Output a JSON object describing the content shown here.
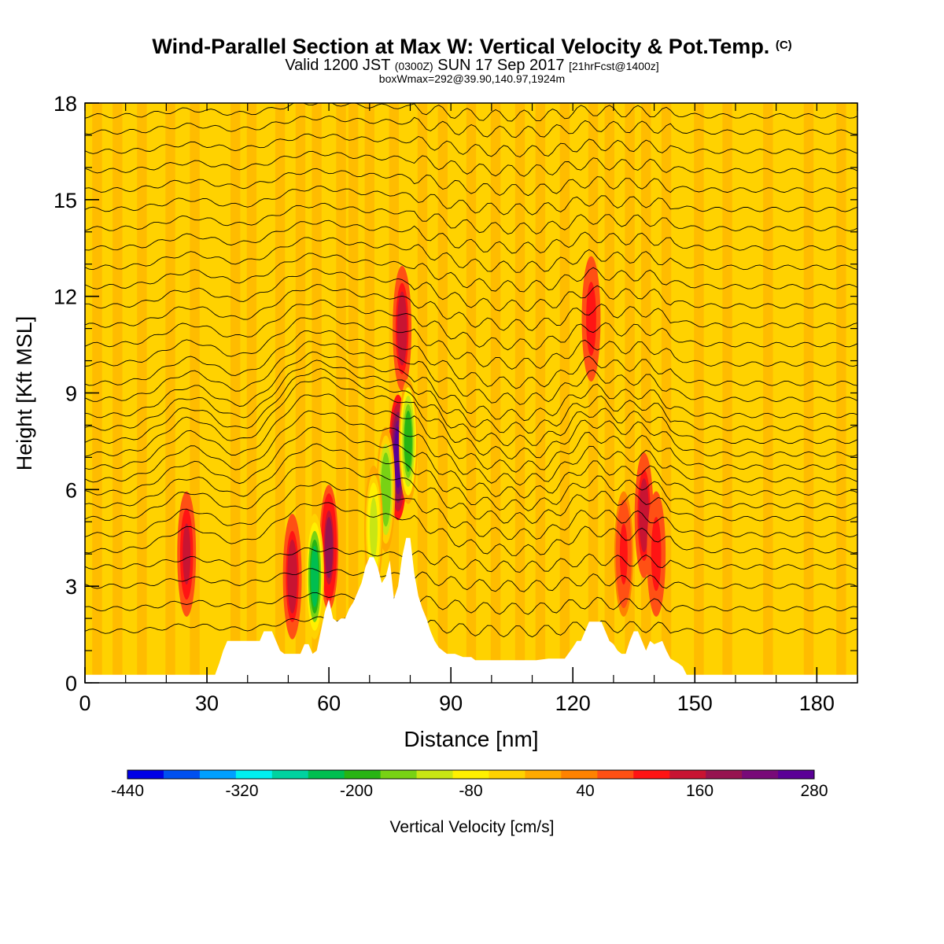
{
  "chart_data": {
    "type": "heatmap",
    "title": "Wind-Parallel Section at Max W: Vertical Velocity & Pot.Temp.",
    "title_mark": "(C)",
    "subtitle_parts": [
      "Valid 1200 JST ",
      "(0300Z)",
      " SUN 17 Sep 2017 ",
      "[21hrFcst@1400z]"
    ],
    "subtitle2": "boxWmax=292@39.90,140.97,1924m",
    "xlabel": "Distance [nm]",
    "ylabel": "Height [Kft MSL]",
    "xlim": [
      0,
      190
    ],
    "ylim": [
      0,
      18
    ],
    "x_ticks": [
      0,
      30,
      60,
      90,
      120,
      150,
      180
    ],
    "y_ticks": [
      0,
      3,
      6,
      9,
      12,
      15,
      18
    ],
    "colorbar": {
      "label": "Vertical Velocity [cm/s]",
      "range": [
        -440,
        280
      ],
      "tick_values": [
        -440,
        -320,
        -200,
        -80,
        40,
        160,
        280
      ],
      "colors": [
        "#0000e6",
        "#0050f0",
        "#00a0ff",
        "#00f0f0",
        "#00d2a0",
        "#00be50",
        "#28b414",
        "#78d214",
        "#c8e614",
        "#fff000",
        "#ffd200",
        "#ffaa00",
        "#ff8200",
        "#ff5014",
        "#ff1414",
        "#c81432",
        "#961450",
        "#780a78",
        "#5a0096"
      ]
    },
    "terrain_kft": [
      [
        0,
        0.25
      ],
      [
        32,
        0.25
      ],
      [
        33,
        0.6
      ],
      [
        34,
        1.0
      ],
      [
        35,
        1.3
      ],
      [
        43,
        1.3
      ],
      [
        44,
        1.6
      ],
      [
        46,
        1.6
      ],
      [
        47,
        1.3
      ],
      [
        48,
        1.0
      ],
      [
        49,
        0.9
      ],
      [
        53,
        0.9
      ],
      [
        54,
        1.2
      ],
      [
        55,
        1.2
      ],
      [
        56,
        0.9
      ],
      [
        57,
        1.0
      ],
      [
        58,
        1.6
      ],
      [
        59,
        2.2
      ],
      [
        60,
        2.6
      ],
      [
        61,
        2.0
      ],
      [
        62,
        1.9
      ],
      [
        63,
        2.0
      ],
      [
        64,
        2.0
      ],
      [
        65,
        2.3
      ],
      [
        66,
        2.5
      ],
      [
        67,
        2.8
      ],
      [
        68,
        3.1
      ],
      [
        69,
        3.6
      ],
      [
        70,
        3.9
      ],
      [
        71,
        3.9
      ],
      [
        72,
        3.6
      ],
      [
        73,
        3.1
      ],
      [
        74,
        3.3
      ],
      [
        75,
        3.8
      ],
      [
        76,
        2.6
      ],
      [
        77,
        3.0
      ],
      [
        78,
        3.9
      ],
      [
        79,
        4.5
      ],
      [
        80,
        4.5
      ],
      [
        81,
        3.4
      ],
      [
        82,
        2.7
      ],
      [
        83,
        2.3
      ],
      [
        84,
        2.0
      ],
      [
        85,
        1.6
      ],
      [
        86,
        1.3
      ],
      [
        87,
        1.1
      ],
      [
        88,
        1.0
      ],
      [
        89,
        0.9
      ],
      [
        91,
        0.9
      ],
      [
        93,
        0.8
      ],
      [
        95,
        0.8
      ],
      [
        96,
        0.7
      ],
      [
        111,
        0.7
      ],
      [
        114,
        0.75
      ],
      [
        118,
        0.75
      ],
      [
        120,
        1.1
      ],
      [
        121,
        1.3
      ],
      [
        122,
        1.3
      ],
      [
        123,
        1.6
      ],
      [
        124,
        1.9
      ],
      [
        127,
        1.9
      ],
      [
        128,
        1.6
      ],
      [
        129,
        1.3
      ],
      [
        130,
        1.2
      ],
      [
        131,
        1.0
      ],
      [
        132,
        0.9
      ],
      [
        133,
        0.9
      ],
      [
        134,
        1.3
      ],
      [
        135,
        1.6
      ],
      [
        136,
        1.6
      ],
      [
        137,
        1.3
      ],
      [
        138,
        1.0
      ],
      [
        139,
        1.3
      ],
      [
        140,
        1.2
      ],
      [
        142,
        1.3
      ],
      [
        143,
        1.0
      ],
      [
        144,
        0.75
      ],
      [
        146,
        0.6
      ],
      [
        147,
        0.5
      ],
      [
        148,
        0.25
      ],
      [
        190,
        0.25
      ]
    ],
    "updraft_cells_cm_s": [
      {
        "x": 77,
        "z": 7.0,
        "w": 280
      },
      {
        "x": 78,
        "z": 11.0,
        "w": 160
      },
      {
        "x": 60,
        "z": 4.2,
        "w": 190
      },
      {
        "x": 51,
        "z": 3.3,
        "w": 170
      },
      {
        "x": 25,
        "z": 4.0,
        "w": 150
      },
      {
        "x": 124.5,
        "z": 11.3,
        "w": 120
      },
      {
        "x": 137.5,
        "z": 5.2,
        "w": 160
      },
      {
        "x": 140.5,
        "z": 4.0,
        "w": 120
      },
      {
        "x": 132.5,
        "z": 4.0,
        "w": 100
      }
    ],
    "downdraft_cells_cm_s": [
      {
        "x": 56.5,
        "z": 3.3,
        "w": -260
      },
      {
        "x": 74,
        "z": 6.0,
        "w": -180
      },
      {
        "x": 79.5,
        "z": 7.5,
        "w": -200
      },
      {
        "x": 71,
        "z": 4.8,
        "w": -120
      }
    ],
    "isentrope_base_levels_kft": [
      1.6,
      2.3,
      3.0,
      3.6,
      4.1,
      4.6,
      5.1,
      5.5,
      5.9,
      6.3,
      6.7,
      7.1,
      7.5,
      7.9,
      8.3,
      8.8,
      9.3,
      9.9,
      10.5,
      11.1,
      11.7,
      12.3,
      12.9,
      13.5,
      14.1,
      14.7,
      15.3,
      15.9,
      16.5,
      17.1,
      17.6
    ]
  }
}
